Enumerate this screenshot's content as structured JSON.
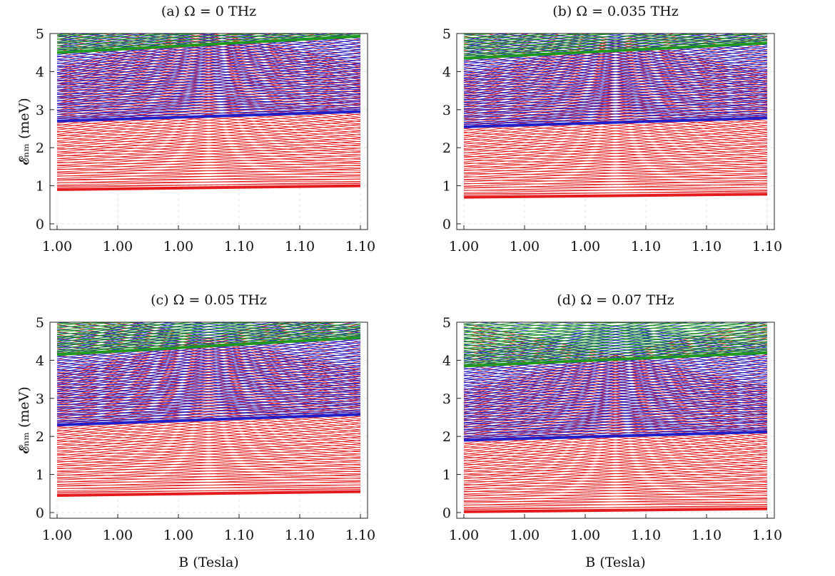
{
  "chart_data": [
    {
      "type": "line",
      "title": "(a) Ω = 0 THz",
      "ylabel": "𝓔ₙₘ (meV)",
      "xlabel": "",
      "x_tick_labels": [
        "1.00",
        "1.00",
        "1.00",
        "1.10",
        "1.10",
        "1.10"
      ],
      "y_ticks": [
        0,
        1,
        2,
        3,
        4,
        5
      ],
      "xlim": [
        1.0,
        1.1
      ],
      "ylim": [
        -0.15,
        5.0
      ],
      "grid": "dashed",
      "series": [
        {
          "color": "#e41a1c",
          "band": "lower",
          "base_at_x0": 0.9,
          "base_at_x1": 1.0,
          "level_spacing": 0.058,
          "level_count": 56
        },
        {
          "color": "#1f1fcc",
          "band": "middle",
          "base_at_x0": 2.7,
          "base_at_x1": 2.95,
          "level_spacing": 0.058,
          "level_count": 40
        },
        {
          "color": "#1f9a1f",
          "band": "upper",
          "base_at_x0": 4.5,
          "base_at_x1": 4.93,
          "level_spacing": 0.058,
          "level_count": 12
        }
      ]
    },
    {
      "type": "line",
      "title": "(b) Ω = 0.035 THz",
      "ylabel": "",
      "xlabel": "",
      "x_tick_labels": [
        "1.00",
        "1.00",
        "1.00",
        "1.10",
        "1.10",
        "1.10"
      ],
      "y_ticks": [
        0,
        1,
        2,
        3,
        4,
        5
      ],
      "xlim": [
        1.0,
        1.1
      ],
      "ylim": [
        -0.15,
        5.0
      ],
      "grid": "dashed",
      "series": [
        {
          "color": "#e41a1c",
          "band": "lower",
          "base_at_x0": 0.7,
          "base_at_x1": 0.78,
          "level_spacing": 0.058,
          "level_count": 56
        },
        {
          "color": "#1f1fcc",
          "band": "middle",
          "base_at_x0": 2.55,
          "base_at_x1": 2.78,
          "level_spacing": 0.058,
          "level_count": 40
        },
        {
          "color": "#1f9a1f",
          "band": "upper",
          "base_at_x0": 4.35,
          "base_at_x1": 4.75,
          "level_spacing": 0.058,
          "level_count": 14
        }
      ]
    },
    {
      "type": "line",
      "title": "(c) Ω = 0.05 THz",
      "ylabel": "𝓔ₙₘ (meV)",
      "xlabel": "B (Tesla)",
      "x_tick_labels": [
        "1.00",
        "1.00",
        "1.00",
        "1.10",
        "1.10",
        "1.10"
      ],
      "y_ticks": [
        0,
        1,
        2,
        3,
        4,
        5
      ],
      "xlim": [
        1.0,
        1.1
      ],
      "ylim": [
        -0.15,
        5.0
      ],
      "grid": "dashed",
      "series": [
        {
          "color": "#e41a1c",
          "band": "lower",
          "base_at_x0": 0.45,
          "base_at_x1": 0.55,
          "level_spacing": 0.058,
          "level_count": 56
        },
        {
          "color": "#1f1fcc",
          "band": "middle",
          "base_at_x0": 2.3,
          "base_at_x1": 2.58,
          "level_spacing": 0.058,
          "level_count": 40
        },
        {
          "color": "#1f9a1f",
          "band": "upper",
          "base_at_x0": 4.15,
          "base_at_x1": 4.6,
          "level_spacing": 0.058,
          "level_count": 16
        }
      ]
    },
    {
      "type": "line",
      "title": "(d) Ω = 0.07 THz",
      "ylabel": "",
      "xlabel": "B (Tesla)",
      "x_tick_labels": [
        "1.00",
        "1.00",
        "1.00",
        "1.10",
        "1.10",
        "1.10"
      ],
      "y_ticks": [
        0,
        1,
        2,
        3,
        4,
        5
      ],
      "xlim": [
        1.0,
        1.1
      ],
      "ylim": [
        -0.15,
        5.0
      ],
      "grid": "dashed",
      "series": [
        {
          "color": "#e41a1c",
          "band": "lower",
          "base_at_x0": 0.02,
          "base_at_x1": 0.1,
          "level_spacing": 0.058,
          "level_count": 56
        },
        {
          "color": "#1f1fcc",
          "band": "middle",
          "base_at_x0": 1.9,
          "base_at_x1": 2.12,
          "level_spacing": 0.058,
          "level_count": 40
        },
        {
          "color": "#1f9a1f",
          "band": "upper",
          "base_at_x0": 3.85,
          "base_at_x1": 4.2,
          "level_spacing": 0.058,
          "level_count": 20
        }
      ]
    }
  ]
}
